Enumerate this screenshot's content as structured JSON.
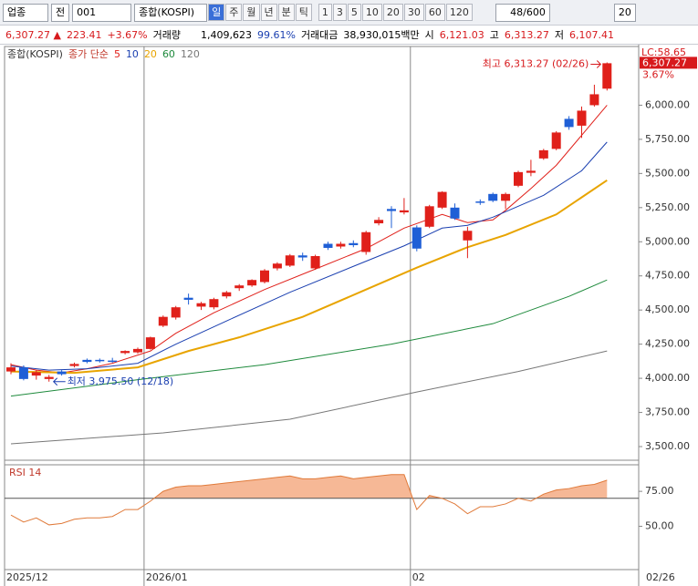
{
  "toolbar": {
    "market": "업종",
    "mode": "전",
    "code": "001",
    "name": "종합(KOSPI)",
    "periods": [
      "일",
      "주",
      "월",
      "년",
      "분",
      "틱"
    ],
    "intervals": [
      "1",
      "3",
      "5",
      "10",
      "20",
      "30",
      "60",
      "120"
    ],
    "count": "48/600",
    "extra": "20"
  },
  "quote": {
    "price": "6,307.27 ▲",
    "change": "223.41",
    "change_pct": "+3.67%",
    "volume_label": "거래량",
    "volume": "1,409,623",
    "volume_ratio": "99.61%",
    "amount_label": "거래대금",
    "amount": "38,930,015백만",
    "open_label": "시",
    "open": "6,121.03",
    "high_label": "고",
    "high": "6,313.27",
    "low_label": "저",
    "low": "6,107.41"
  },
  "chart_data": {
    "type": "candlestick",
    "title": "종합(KOSPI)",
    "ma_label": "종가 단순",
    "open": [
      4050,
      4080,
      4020,
      3995,
      4050,
      4090,
      4135,
      4135,
      4130,
      4185,
      4190,
      4215,
      4385,
      4445,
      4590,
      4525,
      4520,
      4600,
      4660,
      4680,
      4705,
      4805,
      4825,
      4900,
      4805,
      4985,
      4965,
      4990,
      4925,
      5135,
      5240,
      5215,
      5105,
      5110,
      5250,
      5250,
      5010,
      5295,
      5350,
      5300,
      5410,
      5505,
      5610,
      5680,
      5900,
      5850,
      6000,
      6121.03
    ],
    "high": [
      4110,
      4095,
      4060,
      4025,
      4060,
      4115,
      4145,
      4145,
      4150,
      4205,
      4225,
      4305,
      4460,
      4530,
      4620,
      4560,
      4590,
      4640,
      4690,
      4725,
      4800,
      4850,
      4910,
      4920,
      4905,
      5000,
      5000,
      5010,
      5080,
      5180,
      5260,
      5320,
      5120,
      5270,
      5370,
      5280,
      5110,
      5310,
      5360,
      5360,
      5520,
      5600,
      5680,
      5810,
      5920,
      5990,
      6150,
      6313.27
    ],
    "low": [
      4030,
      3985,
      3990,
      3975.5,
      4020,
      4080,
      4110,
      4115,
      4115,
      4175,
      4180,
      4210,
      4375,
      4430,
      4540,
      4500,
      4505,
      4585,
      4640,
      4670,
      4695,
      4790,
      4815,
      4860,
      4795,
      4940,
      4950,
      4960,
      4905,
      5120,
      5100,
      5200,
      4930,
      5100,
      5240,
      5160,
      4880,
      5270,
      5290,
      5240,
      5400,
      5480,
      5600,
      5670,
      5820,
      5760,
      5990,
      6107.41
    ],
    "close": [
      4080,
      3995,
      4045,
      4010,
      4030,
      4105,
      4120,
      4125,
      4125,
      4200,
      4215,
      4300,
      4450,
      4520,
      4575,
      4550,
      4580,
      4630,
      4680,
      4720,
      4790,
      4840,
      4900,
      4885,
      4895,
      4955,
      4985,
      4975,
      5070,
      5160,
      5225,
      5230,
      4950,
      5260,
      5365,
      5170,
      5080,
      5285,
      5300,
      5350,
      5510,
      5520,
      5670,
      5800,
      5840,
      5960,
      6080,
      6307.27
    ],
    "up_color": "#e0201a",
    "down_color": "#1f5fd6",
    "ma": [
      {
        "name": "5",
        "color": "#e0201a",
        "x": [
          0,
          2,
          4,
          6,
          8,
          11,
          13,
          16,
          20,
          24,
          28,
          31,
          34,
          36,
          38,
          39,
          41,
          43,
          45,
          47
        ],
        "values": [
          4100,
          4060,
          4040,
          4070,
          4110,
          4200,
          4330,
          4480,
          4650,
          4800,
          4950,
          5100,
          5200,
          5140,
          5160,
          5230,
          5390,
          5560,
          5780,
          6000
        ]
      },
      {
        "name": "10",
        "color": "#1a3fb0",
        "x": [
          0,
          3,
          6,
          10,
          13,
          17,
          22,
          27,
          31,
          34,
          36,
          38,
          42,
          45,
          47
        ],
        "values": [
          4090,
          4060,
          4070,
          4110,
          4250,
          4420,
          4630,
          4820,
          4970,
          5100,
          5120,
          5180,
          5340,
          5520,
          5730
        ]
      },
      {
        "name": "20",
        "color": "#e8a400",
        "x": [
          0,
          5,
          10,
          14,
          18,
          23,
          28,
          32,
          36,
          39,
          43,
          47
        ],
        "values": [
          4050,
          4040,
          4080,
          4200,
          4300,
          4450,
          4650,
          4810,
          4960,
          5050,
          5200,
          5450
        ]
      },
      {
        "name": "60",
        "color": "#1e8a3c",
        "x": [
          0,
          10,
          20,
          30,
          38,
          44,
          47
        ],
        "values": [
          3870,
          3990,
          4100,
          4250,
          4400,
          4600,
          4720
        ]
      },
      {
        "name": "120",
        "color": "#777777",
        "x": [
          0,
          12,
          22,
          32,
          40,
          47
        ],
        "values": [
          3520,
          3600,
          3700,
          3900,
          4050,
          4200
        ]
      }
    ],
    "ylim": [
      3400,
      6430
    ],
    "yticks": [
      {
        "value": 3500,
        "label": "3,500.00"
      },
      {
        "value": 3750,
        "label": "3,750.00"
      },
      {
        "value": 4000,
        "label": "4,000.00"
      },
      {
        "value": 4250,
        "label": "4,250.00"
      },
      {
        "value": 4500,
        "label": "4,500.00"
      },
      {
        "value": 4750,
        "label": "4,750.00"
      },
      {
        "value": 5000,
        "label": "5,000.00"
      },
      {
        "value": 5250,
        "label": "5,250.00"
      },
      {
        "value": 5500,
        "label": "5,500.00"
      },
      {
        "value": 5750,
        "label": "5,750.00"
      },
      {
        "value": 6000,
        "label": "6,000.00"
      }
    ],
    "x_labels": [
      {
        "index": 0,
        "label": "2025/12"
      },
      {
        "index": 11,
        "label": "2026/01"
      },
      {
        "index": 32,
        "label": "02"
      }
    ],
    "date_label": "02/26",
    "lc_label": "LC:58.65",
    "last_label": "6,307.27",
    "last_pct": "3.67%",
    "high_annotation": "최고 6,313.27 (02/26)",
    "low_annotation": "최저 3,975.50 (12/18)",
    "rsi": {
      "name": "RSI 14",
      "color": "#e07a3a",
      "fill": "#f6b896",
      "level": 70,
      "ylim": [
        19,
        94
      ],
      "yticks": [
        {
          "value": 50,
          "label": "50.00"
        },
        {
          "value": 75,
          "label": "75.00"
        }
      ],
      "values": [
        58,
        53,
        56,
        51,
        52,
        55,
        56,
        56,
        57,
        62,
        62,
        68,
        75,
        78,
        79,
        79,
        80,
        81,
        82,
        83,
        84,
        85,
        86,
        84,
        84,
        85,
        86,
        84,
        85,
        86,
        87,
        87,
        62,
        72,
        70,
        66,
        59,
        64,
        64,
        66,
        70,
        68,
        73,
        76,
        77,
        79,
        80,
        83
      ]
    }
  }
}
